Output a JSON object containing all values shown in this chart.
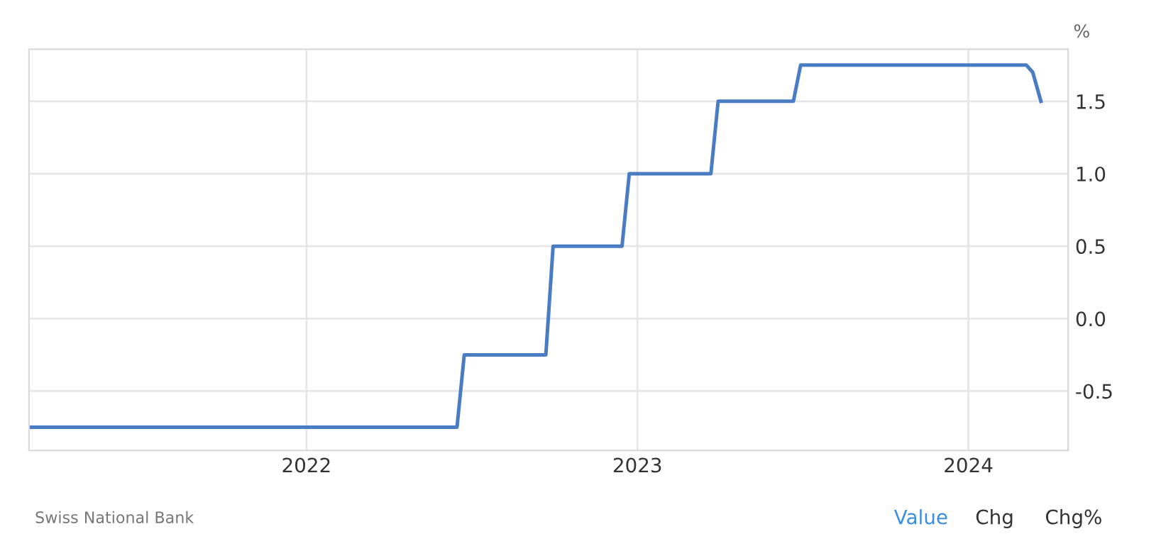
{
  "chart_data": {
    "type": "line",
    "ylabel": "%",
    "x": [
      "2021-03-01",
      "2022-06-16",
      "2022-06-24",
      "2022-09-22",
      "2022-09-30",
      "2022-12-15",
      "2022-12-23",
      "2023-03-23",
      "2023-03-31",
      "2023-06-22",
      "2023-06-30",
      "2024-03-05",
      "2024-03-12",
      "2024-03-21"
    ],
    "series": [
      {
        "color": "#4a7cc4",
        "values": [
          -0.75,
          -0.75,
          -0.25,
          -0.25,
          0.5,
          0.5,
          1.0,
          1.0,
          1.5,
          1.5,
          1.75,
          1.75,
          1.7,
          1.5
        ]
      }
    ],
    "xlim": [
      "2021-03-01",
      "2024-04-20"
    ],
    "xticks": [
      "2022",
      "2023",
      "2024"
    ],
    "ylim": [
      -0.91,
      1.86
    ],
    "yticks": [
      {
        "value": -0.5,
        "label": "-0.5"
      },
      {
        "value": 0,
        "label": "0.0"
      },
      0.5,
      {
        "value": 1,
        "label": "1.0"
      },
      1.5
    ],
    "grid": true,
    "legend": false,
    "marker": "none",
    "line_style": "solid",
    "annotations": [
      "Swiss National Bank",
      "Value",
      "Chg",
      "Chg%"
    ]
  }
}
